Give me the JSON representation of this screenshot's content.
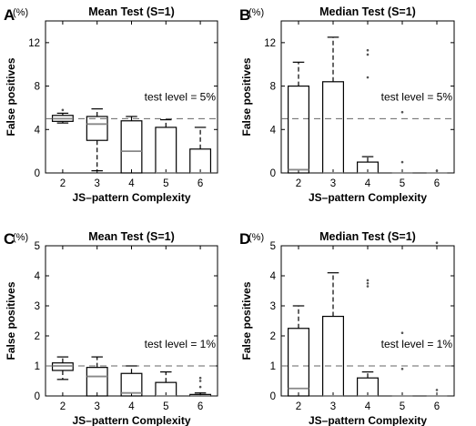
{
  "chart_data": [
    {
      "panel": "A",
      "type": "box",
      "title": "Mean Test (S=1)",
      "ylabel": "False positives",
      "yunit": "(%)",
      "xlabel": "JS–pattern Complexity",
      "categories": [
        "2",
        "3",
        "4",
        "5",
        "6"
      ],
      "ylim": [
        0,
        14
      ],
      "yticks": [
        "0",
        "4",
        "8",
        "12"
      ],
      "yticks_values": [
        0,
        4,
        8,
        12
      ],
      "reference_line": {
        "value": 5,
        "label": "test level = 5%"
      },
      "boxes": [
        {
          "category": "2",
          "whisker_low": 4.6,
          "q1": 4.75,
          "median": 5.0,
          "q3": 5.3,
          "whisker_high": 5.5,
          "outliers": [
            5.8
          ]
        },
        {
          "category": "3",
          "whisker_low": 0.2,
          "q1": 3.0,
          "median": 4.5,
          "q3": 5.2,
          "whisker_high": 5.9,
          "outliers": []
        },
        {
          "category": "4",
          "whisker_low": 0.0,
          "q1": 0.0,
          "median": 2.0,
          "q3": 4.8,
          "whisker_high": 5.2,
          "outliers": []
        },
        {
          "category": "5",
          "whisker_low": 0.0,
          "q1": 0.0,
          "median": 0.0,
          "q3": 4.2,
          "whisker_high": 4.9,
          "outliers": []
        },
        {
          "category": "6",
          "whisker_low": 0.0,
          "q1": 0.0,
          "median": 0.0,
          "q3": 2.2,
          "whisker_high": 4.2,
          "outliers": []
        }
      ]
    },
    {
      "panel": "B",
      "type": "box",
      "title": "Median Test (S=1)",
      "ylabel": "False positives",
      "yunit": "(%)",
      "xlabel": "JS–pattern Complexity",
      "categories": [
        "2",
        "3",
        "4",
        "5",
        "6"
      ],
      "ylim": [
        0,
        14
      ],
      "yticks": [
        "0",
        "4",
        "8",
        "12"
      ],
      "yticks_values": [
        0,
        4,
        8,
        12
      ],
      "reference_line": {
        "value": 5,
        "label": "test level = 5%"
      },
      "boxes": [
        {
          "category": "2",
          "whisker_low": 0.0,
          "q1": 0.0,
          "median": 0.3,
          "q3": 8.0,
          "whisker_high": 10.2,
          "outliers": []
        },
        {
          "category": "3",
          "whisker_low": 0.0,
          "q1": 0.0,
          "median": 0.0,
          "q3": 8.4,
          "whisker_high": 12.5,
          "outliers": []
        },
        {
          "category": "4",
          "whisker_low": 0.0,
          "q1": 0.0,
          "median": 0.0,
          "q3": 1.0,
          "whisker_high": 1.5,
          "outliers": [
            8.8,
            10.9,
            11.3
          ]
        },
        {
          "category": "5",
          "whisker_low": 0.0,
          "q1": 0.0,
          "median": 0.0,
          "q3": 0.0,
          "whisker_high": 0.0,
          "outliers": [
            1.0,
            5.6
          ]
        },
        {
          "category": "6",
          "whisker_low": 0.0,
          "q1": 0.0,
          "median": 0.0,
          "q3": 0.0,
          "whisker_high": 0.0,
          "outliers": [
            0.2
          ]
        }
      ]
    },
    {
      "panel": "C",
      "type": "box",
      "title": "Mean Test (S=1)",
      "ylabel": "False positives",
      "yunit": "(%)",
      "xlabel": "JS–pattern Complexity",
      "categories": [
        "2",
        "3",
        "4",
        "5",
        "6"
      ],
      "ylim": [
        0,
        5
      ],
      "yticks": [
        "0",
        "1",
        "2",
        "3",
        "4",
        "5"
      ],
      "yticks_values": [
        0,
        1,
        2,
        3,
        4,
        5
      ],
      "reference_line": {
        "value": 1,
        "label": "test level = 1%"
      },
      "boxes": [
        {
          "category": "2",
          "whisker_low": 0.55,
          "q1": 0.85,
          "median": 1.0,
          "q3": 1.1,
          "whisker_high": 1.3,
          "outliers": []
        },
        {
          "category": "3",
          "whisker_low": 0.0,
          "q1": 0.0,
          "median": 0.65,
          "q3": 0.95,
          "whisker_high": 1.3,
          "outliers": []
        },
        {
          "category": "4",
          "whisker_low": 0.0,
          "q1": 0.0,
          "median": 0.1,
          "q3": 0.75,
          "whisker_high": 1.0,
          "outliers": []
        },
        {
          "category": "5",
          "whisker_low": 0.0,
          "q1": 0.0,
          "median": 0.0,
          "q3": 0.45,
          "whisker_high": 0.8,
          "outliers": []
        },
        {
          "category": "6",
          "whisker_low": 0.0,
          "q1": 0.0,
          "median": 0.0,
          "q3": 0.05,
          "whisker_high": 0.1,
          "outliers": [
            0.3,
            0.5,
            0.6
          ]
        }
      ]
    },
    {
      "panel": "D",
      "type": "box",
      "title": "Median Test (S=1)",
      "ylabel": "False positives",
      "yunit": "(%)",
      "xlabel": "JS–pattern Complexity",
      "categories": [
        "2",
        "3",
        "4",
        "5",
        "6"
      ],
      "ylim": [
        0,
        5
      ],
      "yticks": [
        "0",
        "1",
        "2",
        "3",
        "4",
        "5"
      ],
      "yticks_values": [
        0,
        1,
        2,
        3,
        4,
        5
      ],
      "reference_line": {
        "value": 1,
        "label": "test level = 1%"
      },
      "boxes": [
        {
          "category": "2",
          "whisker_low": 0.0,
          "q1": 0.0,
          "median": 0.25,
          "q3": 2.25,
          "whisker_high": 3.0,
          "outliers": []
        },
        {
          "category": "3",
          "whisker_low": 0.0,
          "q1": 0.0,
          "median": 0.0,
          "q3": 2.65,
          "whisker_high": 4.1,
          "outliers": []
        },
        {
          "category": "4",
          "whisker_low": 0.0,
          "q1": 0.0,
          "median": 0.0,
          "q3": 0.6,
          "whisker_high": 0.8,
          "outliers": [
            3.65,
            3.75,
            3.85
          ]
        },
        {
          "category": "5",
          "whisker_low": 0.0,
          "q1": 0.0,
          "median": 0.0,
          "q3": 0.0,
          "whisker_high": 0.0,
          "outliers": [
            0.9,
            2.1
          ]
        },
        {
          "category": "6",
          "whisker_low": 0.0,
          "q1": 0.0,
          "median": 0.0,
          "q3": 0.0,
          "whisker_high": 0.0,
          "outliers": [
            0.2,
            5.1
          ]
        }
      ]
    }
  ]
}
